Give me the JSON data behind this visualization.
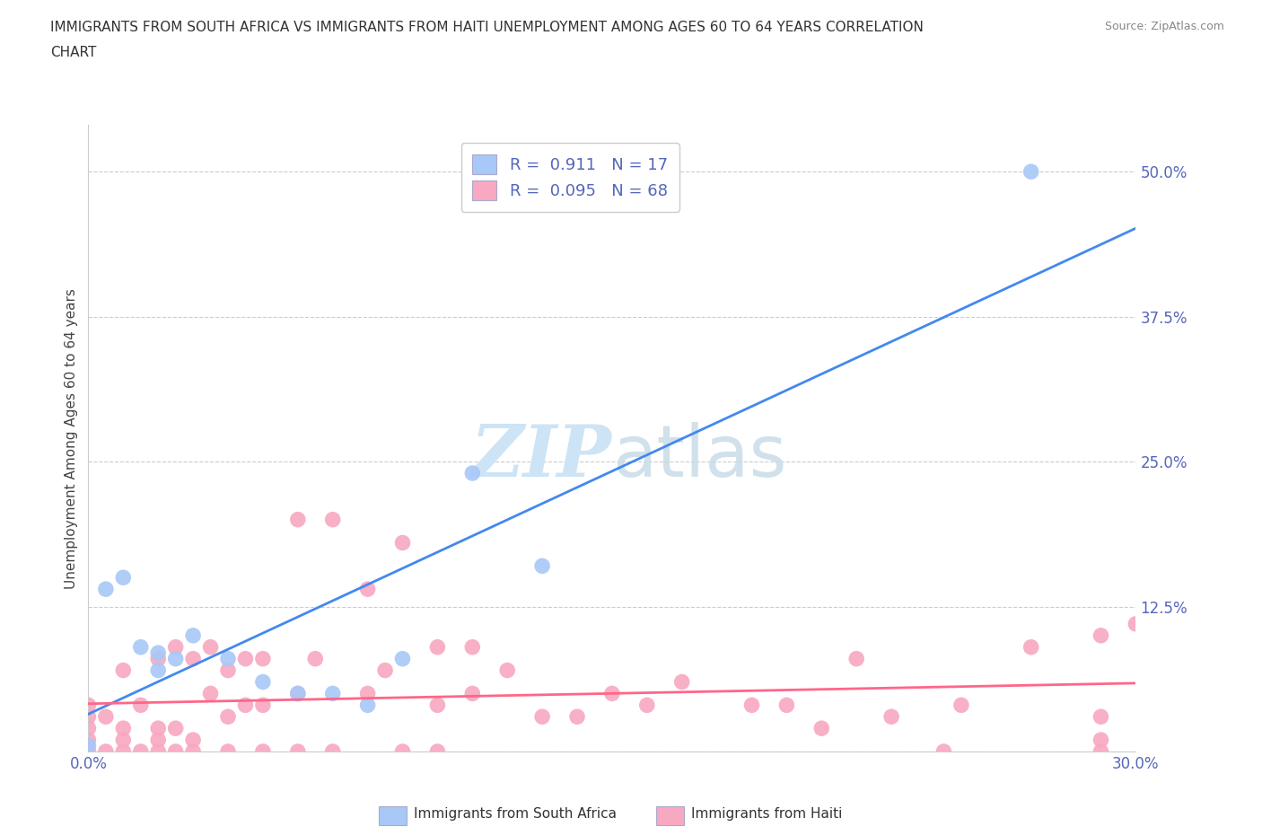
{
  "title_line1": "IMMIGRANTS FROM SOUTH AFRICA VS IMMIGRANTS FROM HAITI UNEMPLOYMENT AMONG AGES 60 TO 64 YEARS CORRELATION",
  "title_line2": "CHART",
  "source": "Source: ZipAtlas.com",
  "ylabel": "Unemployment Among Ages 60 to 64 years",
  "xlim": [
    0.0,
    0.3
  ],
  "ylim": [
    0.0,
    0.54
  ],
  "xtick_vals": [
    0.0,
    0.05,
    0.1,
    0.15,
    0.2,
    0.25,
    0.3
  ],
  "xtick_labels": [
    "0.0%",
    "",
    "",
    "",
    "",
    "",
    "30.0%"
  ],
  "ytick_vals": [
    0.0,
    0.125,
    0.25,
    0.375,
    0.5
  ],
  "ytick_labels": [
    "",
    "12.5%",
    "25.0%",
    "37.5%",
    "50.0%"
  ],
  "R_sa": 0.911,
  "N_sa": 17,
  "R_haiti": 0.095,
  "N_haiti": 68,
  "color_sa": "#a8c8f8",
  "color_haiti": "#f8a8c0",
  "trendline_sa_color": "#4488ee",
  "trendline_haiti_color": "#ff6688",
  "watermark_color": "#cce4f5",
  "tick_color": "#5566bb",
  "sa_x": [
    0.0,
    0.005,
    0.01,
    0.015,
    0.02,
    0.02,
    0.025,
    0.03,
    0.04,
    0.05,
    0.06,
    0.07,
    0.08,
    0.09,
    0.11,
    0.13,
    0.27
  ],
  "sa_y": [
    0.005,
    0.14,
    0.15,
    0.09,
    0.085,
    0.07,
    0.08,
    0.1,
    0.08,
    0.06,
    0.05,
    0.05,
    0.04,
    0.08,
    0.24,
    0.16,
    0.5
  ],
  "haiti_x": [
    0.0,
    0.0,
    0.0,
    0.0,
    0.0,
    0.005,
    0.005,
    0.01,
    0.01,
    0.01,
    0.01,
    0.015,
    0.015,
    0.02,
    0.02,
    0.02,
    0.02,
    0.025,
    0.025,
    0.025,
    0.03,
    0.03,
    0.03,
    0.035,
    0.035,
    0.04,
    0.04,
    0.04,
    0.045,
    0.045,
    0.05,
    0.05,
    0.05,
    0.06,
    0.06,
    0.06,
    0.065,
    0.07,
    0.07,
    0.08,
    0.08,
    0.085,
    0.09,
    0.09,
    0.1,
    0.1,
    0.1,
    0.11,
    0.11,
    0.12,
    0.13,
    0.14,
    0.15,
    0.16,
    0.17,
    0.19,
    0.2,
    0.21,
    0.22,
    0.23,
    0.245,
    0.25,
    0.27,
    0.29,
    0.29,
    0.29,
    0.29,
    0.3
  ],
  "haiti_y": [
    0.0,
    0.01,
    0.02,
    0.03,
    0.04,
    0.0,
    0.03,
    0.0,
    0.01,
    0.02,
    0.07,
    0.0,
    0.04,
    0.0,
    0.01,
    0.02,
    0.08,
    0.0,
    0.02,
    0.09,
    0.0,
    0.01,
    0.08,
    0.09,
    0.05,
    0.0,
    0.03,
    0.07,
    0.04,
    0.08,
    0.0,
    0.04,
    0.08,
    0.0,
    0.05,
    0.2,
    0.08,
    0.0,
    0.2,
    0.05,
    0.14,
    0.07,
    0.0,
    0.18,
    0.0,
    0.04,
    0.09,
    0.05,
    0.09,
    0.07,
    0.03,
    0.03,
    0.05,
    0.04,
    0.06,
    0.04,
    0.04,
    0.02,
    0.08,
    0.03,
    0.0,
    0.04,
    0.09,
    0.0,
    0.01,
    0.1,
    0.03,
    0.11
  ]
}
